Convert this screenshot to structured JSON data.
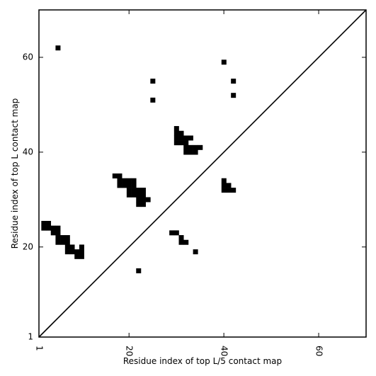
{
  "chart_data": {
    "type": "heatmap",
    "title": "",
    "xlabel": "Residue index of top L/5 contact map",
    "ylabel": "Residue index of top L contact map",
    "xlim": [
      1,
      70
    ],
    "ylim": [
      1,
      70
    ],
    "x_ticks": [
      {
        "value": 1,
        "label": "1"
      },
      {
        "value": 20,
        "label": "20"
      },
      {
        "value": 40,
        "label": "40"
      },
      {
        "value": 60,
        "label": "60"
      }
    ],
    "y_ticks": [
      {
        "value": 1,
        "label": "1"
      },
      {
        "value": 20,
        "label": "20"
      },
      {
        "value": 40,
        "label": "40"
      },
      {
        "value": 60,
        "label": "60"
      }
    ],
    "diagonal": true,
    "grid": false,
    "cell_color": "#000000",
    "cells": [
      [
        5,
        62
      ],
      [
        22,
        15
      ],
      [
        40,
        59
      ],
      [
        42,
        55
      ],
      [
        42,
        52
      ],
      [
        25,
        55
      ],
      [
        25,
        51
      ],
      [
        2,
        25
      ],
      [
        3,
        25
      ],
      [
        2,
        24
      ],
      [
        3,
        24
      ],
      [
        4,
        24
      ],
      [
        5,
        24
      ],
      [
        4,
        23
      ],
      [
        5,
        23
      ],
      [
        5,
        22
      ],
      [
        6,
        22
      ],
      [
        7,
        22
      ],
      [
        5,
        21
      ],
      [
        6,
        21
      ],
      [
        7,
        21
      ],
      [
        7,
        20
      ],
      [
        8,
        20
      ],
      [
        10,
        20
      ],
      [
        7,
        19
      ],
      [
        8,
        19
      ],
      [
        9,
        19
      ],
      [
        10,
        19
      ],
      [
        9,
        18
      ],
      [
        10,
        18
      ],
      [
        29,
        23
      ],
      [
        30,
        23
      ],
      [
        31,
        22
      ],
      [
        31,
        21
      ],
      [
        32,
        21
      ],
      [
        34,
        19
      ],
      [
        17,
        35
      ],
      [
        18,
        35
      ],
      [
        18,
        34
      ],
      [
        19,
        34
      ],
      [
        20,
        34
      ],
      [
        21,
        34
      ],
      [
        18,
        33
      ],
      [
        19,
        33
      ],
      [
        20,
        33
      ],
      [
        21,
        33
      ],
      [
        20,
        32
      ],
      [
        21,
        32
      ],
      [
        22,
        32
      ],
      [
        23,
        32
      ],
      [
        20,
        31
      ],
      [
        21,
        31
      ],
      [
        22,
        31
      ],
      [
        23,
        31
      ],
      [
        22,
        30
      ],
      [
        23,
        30
      ],
      [
        24,
        30
      ],
      [
        22,
        29
      ],
      [
        23,
        29
      ],
      [
        30,
        45
      ],
      [
        30,
        44
      ],
      [
        31,
        44
      ],
      [
        30,
        43
      ],
      [
        31,
        43
      ],
      [
        32,
        43
      ],
      [
        33,
        43
      ],
      [
        30,
        42
      ],
      [
        31,
        42
      ],
      [
        32,
        42
      ],
      [
        32,
        41
      ],
      [
        33,
        41
      ],
      [
        34,
        41
      ],
      [
        35,
        41
      ],
      [
        32,
        40
      ],
      [
        33,
        40
      ],
      [
        34,
        40
      ],
      [
        40,
        34
      ],
      [
        40,
        33
      ],
      [
        41,
        33
      ],
      [
        40,
        32
      ],
      [
        41,
        32
      ],
      [
        42,
        32
      ]
    ]
  }
}
